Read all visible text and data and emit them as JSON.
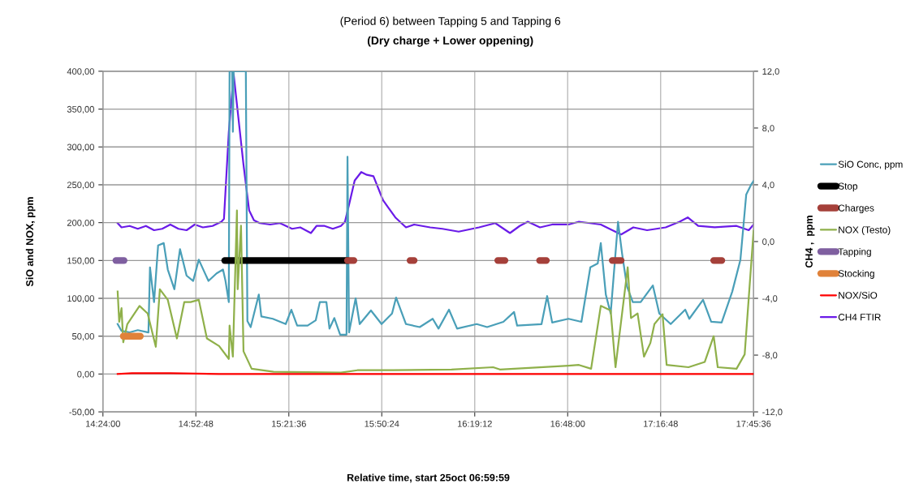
{
  "chart_data": {
    "type": "line",
    "title": "(Period 6) between Tapping 5 and Tapping 6",
    "subtitle": "(Dry charge + Lower oppening)",
    "xlabel": "Relative time, start 25oct 06:59:59",
    "ylabel": "SiO and NOX, ppm",
    "y2label": "CH4 ,  ppm",
    "xlim": [
      14.4,
      17.76
    ],
    "xticks": [
      {
        "value": 14.4,
        "label": "14:24:00"
      },
      {
        "value": 14.88,
        "label": "14:52:48"
      },
      {
        "value": 15.36,
        "label": "15:21:36"
      },
      {
        "value": 15.84,
        "label": "15:50:24"
      },
      {
        "value": 16.32,
        "label": "16:19:12"
      },
      {
        "value": 16.8,
        "label": "16:48:00"
      },
      {
        "value": 17.28,
        "label": "17:16:48"
      },
      {
        "value": 17.76,
        "label": "17:45:36"
      }
    ],
    "ylim": [
      -50,
      400
    ],
    "yticks": [
      {
        "value": -50,
        "label": "-50,00"
      },
      {
        "value": 0,
        "label": "0,00"
      },
      {
        "value": 50,
        "label": "50,00"
      },
      {
        "value": 100,
        "label": "100,00"
      },
      {
        "value": 150,
        "label": "150,00"
      },
      {
        "value": 200,
        "label": "200,00"
      },
      {
        "value": 250,
        "label": "250,00"
      },
      {
        "value": 300,
        "label": "300,00"
      },
      {
        "value": 350,
        "label": "350,00"
      },
      {
        "value": 400,
        "label": "400,00"
      }
    ],
    "y2lim": [
      -12,
      12
    ],
    "y2ticks": [
      {
        "value": -12,
        "label": "-12,0"
      },
      {
        "value": -8,
        "label": "-8,0"
      },
      {
        "value": -4,
        "label": "-4,0"
      },
      {
        "value": 0,
        "label": "0,0"
      },
      {
        "value": 4,
        "label": "4,0"
      },
      {
        "value": 8,
        "label": "8,0"
      },
      {
        "value": 12,
        "label": "12,0"
      }
    ],
    "grid": true,
    "legend": "right",
    "marker": "none",
    "line_style": "solid",
    "series": [
      {
        "name": "SiO Conc, ppm",
        "color": "#4a9fb8",
        "x": [
          14.476,
          14.496,
          14.538,
          14.58,
          14.635,
          14.643,
          14.664,
          14.685,
          14.714,
          14.735,
          14.769,
          14.798,
          14.832,
          14.866,
          14.895,
          14.945,
          14.987,
          15.02,
          15.033,
          15.05,
          15.054,
          15.067,
          15.071,
          15.075,
          15.138,
          15.146,
          15.163,
          15.205,
          15.218,
          15.277,
          15.344,
          15.373,
          15.403,
          15.457,
          15.499,
          15.52,
          15.554,
          15.57,
          15.595,
          15.625,
          15.658,
          15.663,
          15.671,
          15.705,
          15.726,
          15.784,
          15.839,
          15.893,
          15.914,
          15.965,
          16.036,
          16.103,
          16.133,
          16.187,
          16.229,
          16.33,
          16.384,
          16.468,
          16.523,
          16.539,
          16.665,
          16.694,
          16.72,
          16.804,
          16.871,
          16.917,
          16.955,
          16.971,
          16.997,
          17.022,
          17.06,
          17.081,
          17.106,
          17.136,
          17.177,
          17.24,
          17.273,
          17.332,
          17.407,
          17.428,
          17.499,
          17.541,
          17.595,
          17.65,
          17.692,
          17.722,
          17.747,
          17.76
        ],
        "values": [
          66,
          57,
          55,
          58,
          55,
          141,
          95,
          170,
          173,
          138,
          112,
          165,
          130,
          123,
          151,
          123,
          133,
          138,
          123,
          95,
          400,
          400,
          320,
          400,
          400,
          70,
          62,
          105,
          76,
          73,
          66,
          85,
          64,
          64,
          71,
          95,
          95,
          60,
          74,
          52,
          52,
          287,
          55,
          100,
          66,
          84,
          66,
          80,
          101,
          66,
          62,
          73,
          60,
          85,
          60,
          66,
          62,
          69,
          82,
          64,
          66,
          103,
          68,
          73,
          69,
          141,
          146,
          173,
          105,
          80,
          201,
          159,
          116,
          95,
          95,
          117,
          80,
          66,
          85,
          73,
          98,
          69,
          68,
          109,
          151,
          237,
          250,
          255
        ]
      },
      {
        "name": "Stop",
        "color": "#000000",
        "x": [
          15.029,
          15.663
        ],
        "values": [
          150,
          150
        ]
      },
      {
        "name": "Charges",
        "color": "#a5403a",
        "x": [
          15.663,
          15.696,
          15.7,
          15.986,
          16.007,
          16.2,
          16.439,
          16.476,
          16.5,
          16.655,
          16.69,
          16.8,
          17.03,
          17.076,
          17.2,
          17.554,
          17.596
        ],
        "values": [
          150,
          150,
          null,
          150,
          150,
          null,
          150,
          150,
          null,
          150,
          150,
          null,
          150,
          150,
          null,
          150,
          150
        ]
      },
      {
        "name": "NOX (Testo)",
        "color": "#8fb04a",
        "x": [
          14.476,
          14.484,
          14.496,
          14.505,
          14.526,
          14.589,
          14.631,
          14.673,
          14.694,
          14.735,
          14.782,
          14.82,
          14.853,
          14.895,
          14.937,
          15.0,
          15.05,
          15.054,
          15.071,
          15.092,
          15.096,
          15.113,
          15.126,
          15.168,
          15.281,
          15.629,
          15.714,
          15.9,
          16.2,
          16.415,
          16.45,
          16.804,
          16.858,
          16.921,
          16.971,
          17.022,
          17.047,
          17.11,
          17.127,
          17.161,
          17.194,
          17.227,
          17.248,
          17.29,
          17.311,
          17.424,
          17.508,
          17.554,
          17.575,
          17.672,
          17.714,
          17.76
        ],
        "values": [
          109,
          69,
          87,
          42,
          66,
          90,
          80,
          36,
          112,
          98,
          47,
          95,
          95,
          98,
          47,
          37,
          20,
          64,
          23,
          216,
          112,
          196,
          30,
          7,
          3,
          2,
          5,
          5,
          6,
          9,
          6,
          11,
          12,
          7,
          90,
          84,
          9,
          141,
          74,
          80,
          23,
          41,
          66,
          79,
          12,
          9,
          16,
          50,
          9,
          7,
          26,
          189
        ]
      },
      {
        "name": "Tapping",
        "color": "#7f5fa0",
        "x": [
          14.467,
          14.509
        ],
        "values": [
          150,
          150
        ]
      },
      {
        "name": "Stocking",
        "color": "#e0823a",
        "x": [
          14.505,
          14.593
        ],
        "values": [
          50,
          50
        ]
      },
      {
        "name": "NOX/SiO",
        "color": "#ff0000",
        "x": [
          14.476,
          14.55,
          14.65,
          14.75,
          15.0,
          15.5,
          16.0,
          16.5,
          17.0,
          17.5,
          17.76
        ],
        "values": [
          0,
          1,
          1,
          1,
          0,
          0,
          0,
          0,
          0,
          0,
          0
        ]
      },
      {
        "name": "CH4 FTIR",
        "color": "#6a1be8",
        "axis": "y2",
        "x": [
          14.476,
          14.496,
          14.538,
          14.58,
          14.622,
          14.664,
          14.706,
          14.748,
          14.79,
          14.832,
          14.874,
          14.916,
          14.966,
          15.012,
          15.025,
          15.05,
          15.075,
          15.126,
          15.155,
          15.18,
          15.21,
          15.264,
          15.314,
          15.377,
          15.419,
          15.474,
          15.503,
          15.545,
          15.587,
          15.629,
          15.65,
          15.671,
          15.7,
          15.734,
          15.763,
          15.797,
          15.847,
          15.91,
          15.965,
          16.007,
          16.09,
          16.153,
          16.237,
          16.342,
          16.426,
          16.502,
          16.552,
          16.594,
          16.657,
          16.72,
          16.804,
          16.858,
          16.971,
          17.076,
          17.139,
          17.21,
          17.306,
          17.378,
          17.42,
          17.474,
          17.559,
          17.672,
          17.735,
          17.76
        ],
        "values": [
          1.3,
          1.0,
          1.1,
          0.9,
          1.1,
          0.8,
          0.9,
          1.2,
          0.9,
          0.8,
          1.2,
          1.0,
          1.1,
          1.4,
          1.6,
          7.7,
          11.8,
          5.4,
          2.2,
          1.5,
          1.3,
          1.2,
          1.3,
          0.9,
          1.0,
          0.6,
          1.1,
          1.1,
          0.9,
          1.1,
          1.4,
          2.6,
          4.3,
          4.9,
          4.7,
          4.6,
          2.9,
          1.7,
          1.0,
          1.2,
          1.0,
          0.9,
          0.7,
          1.0,
          1.3,
          0.6,
          1.1,
          1.4,
          1.0,
          1.2,
          1.2,
          1.4,
          1.2,
          0.5,
          1.0,
          0.8,
          1.0,
          1.4,
          1.7,
          1.1,
          1.0,
          1.1,
          0.8,
          1.2
        ]
      }
    ]
  }
}
